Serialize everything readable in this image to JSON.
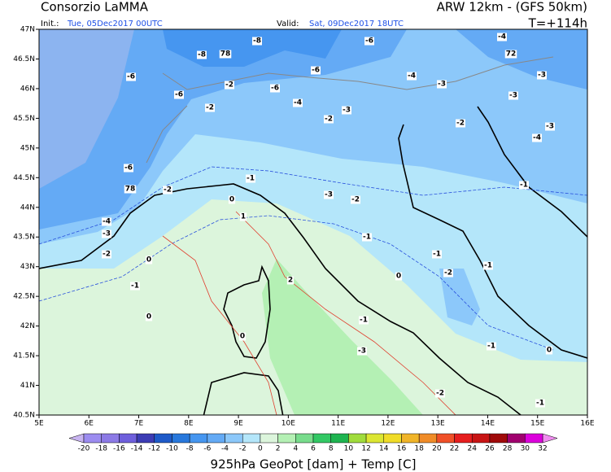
{
  "header": {
    "title": "Consorzio LaMMA",
    "init_label": "Init.:",
    "init_date": "Tue, 05Dec2017 00UTC",
    "valid_label": "Valid:",
    "valid_date": "Sat, 09Dec2017 18UTC",
    "model": "ARW 12km - (GFS 50km)",
    "forecast_step": "T=+114h"
  },
  "map": {
    "lat_ticks": [
      "47N",
      "46.5N",
      "46N",
      "45.5N",
      "45N",
      "44.5N",
      "44N",
      "43.5N",
      "43N",
      "42.5N",
      "42N",
      "41.5N",
      "41N",
      "40.5N"
    ],
    "lon_ticks": [
      "5E",
      "6E",
      "7E",
      "8E",
      "9E",
      "10E",
      "11E",
      "12E",
      "13E",
      "14E",
      "15E",
      "16E"
    ],
    "contour_labels": [
      "-8",
      "78",
      "-8",
      "-6",
      "-4",
      "72",
      "-6",
      "-6",
      "-4",
      "-3",
      "-3",
      "-6",
      "-2",
      "-6",
      "-4",
      "-2",
      "-3",
      "-3",
      "-2",
      "-2",
      "-3",
      "-4",
      "-6",
      "-1",
      "78",
      "-2",
      "-3",
      "-2",
      "0",
      "-1",
      "-4",
      "-3",
      "1",
      "-1",
      "-2",
      "0",
      "-1",
      "-1",
      "-2",
      "0",
      "2",
      "-1",
      "0",
      "-1",
      "0",
      "-1",
      "-3",
      "0",
      "-2",
      "-1"
    ]
  },
  "colorbar": {
    "labels": [
      "-20",
      "-18",
      "-16",
      "-14",
      "-12",
      "-10",
      "-8",
      "-6",
      "-4",
      "-2",
      "0",
      "2",
      "4",
      "6",
      "8",
      "10",
      "12",
      "14",
      "16",
      "18",
      "20",
      "22",
      "24",
      "26",
      "28",
      "30",
      "32"
    ],
    "colors": [
      "#9c8cf0",
      "#8c7ae6",
      "#6e5fdc",
      "#3c3cb4",
      "#1e5ac8",
      "#2878dc",
      "#4696f0",
      "#64aaf5",
      "#8cc8fa",
      "#b4e6fa",
      "#dcf5dc",
      "#b4f0b4",
      "#78dc8c",
      "#32c864",
      "#1eb450",
      "#a0dc3c",
      "#dce632",
      "#f0dc28",
      "#f0b428",
      "#f08c28",
      "#f05028",
      "#e61e1e",
      "#c81414",
      "#a00a0a",
      "#a0006e",
      "#dc00dc"
    ],
    "under_color": "#c8b4f0",
    "over_color": "#f08cf0"
  },
  "footer": {
    "title": "925hPa GeoPot [dam] + Temp [C]"
  }
}
